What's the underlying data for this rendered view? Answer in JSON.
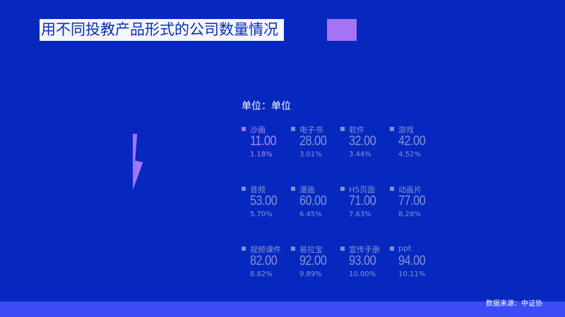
{
  "title": "用不同投教产品形式的公司数量情况",
  "colors": {
    "background": "#0628bf",
    "accent": "#a474f4",
    "legend_inactive": "#8393d3",
    "footer": "#3a4cf5"
  },
  "chart_data": {
    "type": "pie",
    "variant": "rose",
    "unit_label": "单位：单位",
    "items": [
      {
        "name": "沙画",
        "value": "11.00",
        "percent": "1.18%",
        "active": true
      },
      {
        "name": "电子书",
        "value": "28.00",
        "percent": "3.01%"
      },
      {
        "name": "软件",
        "value": "32.00",
        "percent": "3.44%"
      },
      {
        "name": "游戏",
        "value": "42.00",
        "percent": "4.52%"
      },
      {
        "name": "音频",
        "value": "53.00",
        "percent": "5.70%"
      },
      {
        "name": "漫画",
        "value": "60.00",
        "percent": "6.45%"
      },
      {
        "name": "H5页面",
        "value": "71.00",
        "percent": "7.63%"
      },
      {
        "name": "动画片",
        "value": "77.00",
        "percent": "8.28%"
      },
      {
        "name": "视频课件",
        "value": "82.00",
        "percent": "8.82%"
      },
      {
        "name": "易拉宝",
        "value": "92.00",
        "percent": "9.89%"
      },
      {
        "name": "宣传手册",
        "value": "93.00",
        "percent": "10.00%"
      },
      {
        "name": "ppt",
        "value": "94.00",
        "percent": "10.11%"
      }
    ]
  },
  "source": "数据来源：中证协"
}
